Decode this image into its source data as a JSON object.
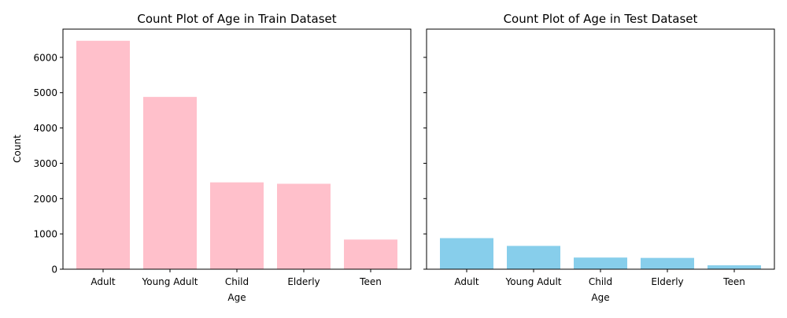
{
  "chart_data": [
    {
      "type": "bar",
      "title": "Count Plot of Age in Train Dataset",
      "xlabel": "Age",
      "ylabel": "Count",
      "categories": [
        "Adult",
        "Young Adult",
        "Child",
        "Elderly",
        "Teen"
      ],
      "values": [
        6470,
        4880,
        2460,
        2420,
        840
      ],
      "ylim": [
        0,
        6800
      ],
      "yticks": [
        0,
        1000,
        2000,
        3000,
        4000,
        5000,
        6000
      ],
      "color": "#ffc0cb",
      "grid": false
    },
    {
      "type": "bar",
      "title": "Count Plot of Age in Test Dataset",
      "xlabel": "Age",
      "ylabel": "",
      "categories": [
        "Adult",
        "Young Adult",
        "Child",
        "Elderly",
        "Teen"
      ],
      "values": [
        880,
        660,
        330,
        320,
        110
      ],
      "ylim": [
        0,
        6800
      ],
      "yticks": [
        0,
        1000,
        2000,
        3000,
        4000,
        5000,
        6000
      ],
      "sharey": true,
      "color": "#87ceeb",
      "grid": false
    }
  ]
}
